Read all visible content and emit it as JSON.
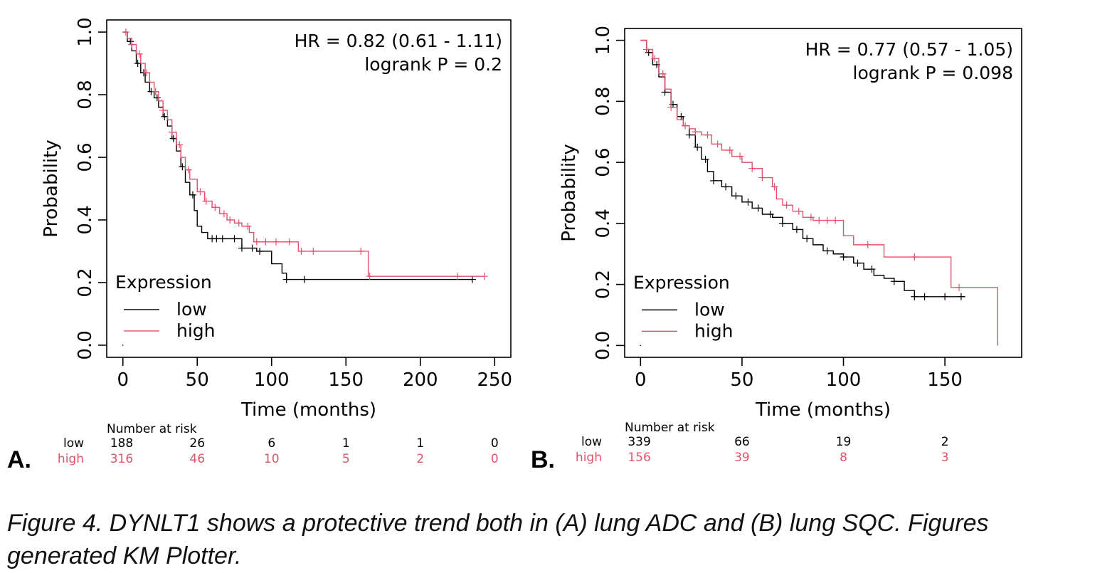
{
  "colors": {
    "low": "#000000",
    "high": "#df536b",
    "axis": "#000000"
  },
  "caption": "Figure 4. DYNLT1 shows a protective trend both in (A) lung ADC and (B) lung SQC. Figures generated KM Plotter.",
  "chart_data": [
    {
      "type": "line",
      "panel_label": "A.",
      "xlabel": "Time (months)",
      "ylabel": "Probability",
      "xlim": [
        0,
        250
      ],
      "ylim": [
        0,
        1
      ],
      "x_ticks": [
        0,
        50,
        100,
        150,
        200,
        250
      ],
      "y_ticks": [
        0.0,
        0.2,
        0.4,
        0.6,
        0.8,
        1.0
      ],
      "annotation": [
        "HR = 0.82 (0.61 - 1.11)",
        "logrank P = 0.2"
      ],
      "legend_title": "Expression",
      "legend_position": "bottom-left",
      "risk_title": "Number at risk",
      "risk_times": [
        0,
        50,
        100,
        150,
        200,
        250
      ],
      "series": [
        {
          "name": "low",
          "color": "#000000",
          "x": [
            0,
            3,
            6,
            9,
            12,
            15,
            18,
            21,
            24,
            27,
            30,
            33,
            36,
            39,
            42,
            45,
            48,
            50,
            53,
            57,
            60,
            65,
            70,
            80,
            90,
            100,
            107,
            110,
            150,
            200,
            235
          ],
          "y": [
            1.0,
            0.97,
            0.94,
            0.9,
            0.87,
            0.84,
            0.81,
            0.79,
            0.76,
            0.73,
            0.7,
            0.66,
            0.62,
            0.57,
            0.52,
            0.48,
            0.43,
            0.38,
            0.36,
            0.34,
            0.34,
            0.34,
            0.34,
            0.31,
            0.3,
            0.26,
            0.23,
            0.21,
            0.21,
            0.21,
            0.21
          ],
          "censor_x": [
            5,
            10,
            14,
            19,
            23,
            28,
            34,
            40,
            47,
            60,
            63,
            67,
            75,
            80,
            87,
            92,
            110,
            122,
            235
          ],
          "at_risk": [
            188,
            26,
            6,
            1,
            1,
            0
          ]
        },
        {
          "name": "high",
          "color": "#df536b",
          "x": [
            0,
            3,
            6,
            9,
            12,
            15,
            18,
            21,
            24,
            27,
            30,
            33,
            36,
            39,
            42,
            45,
            50,
            55,
            60,
            65,
            70,
            75,
            80,
            85,
            88,
            95,
            105,
            118,
            130,
            150,
            160,
            165,
            200,
            243
          ],
          "y": [
            1.0,
            0.98,
            0.96,
            0.93,
            0.9,
            0.87,
            0.84,
            0.81,
            0.78,
            0.75,
            0.72,
            0.68,
            0.64,
            0.6,
            0.56,
            0.53,
            0.49,
            0.46,
            0.44,
            0.42,
            0.4,
            0.39,
            0.38,
            0.36,
            0.33,
            0.33,
            0.33,
            0.3,
            0.3,
            0.3,
            0.3,
            0.22,
            0.22,
            0.22
          ],
          "censor_x": [
            2,
            6,
            11,
            16,
            22,
            27,
            33,
            38,
            44,
            52,
            56,
            62,
            68,
            72,
            78,
            84,
            90,
            96,
            103,
            112,
            120,
            128,
            160,
            166,
            225,
            243
          ],
          "at_risk": [
            316,
            46,
            10,
            5,
            2,
            0
          ]
        }
      ]
    },
    {
      "type": "line",
      "panel_label": "B.",
      "xlabel": "Time (months)",
      "ylabel": "Probability",
      "xlim": [
        0,
        180
      ],
      "ylim": [
        0,
        1
      ],
      "x_ticks": [
        0,
        50,
        100,
        150
      ],
      "y_ticks": [
        0.0,
        0.2,
        0.4,
        0.6,
        0.8,
        1.0
      ],
      "annotation": [
        "HR = 0.77 (0.57 - 1.05)",
        "logrank P = 0.098"
      ],
      "legend_title": "Expression",
      "legend_position": "bottom-left",
      "risk_title": "Number at risk",
      "risk_times": [
        0,
        50,
        100,
        150
      ],
      "series": [
        {
          "name": "low",
          "color": "#000000",
          "x": [
            0,
            3,
            6,
            9,
            12,
            15,
            18,
            21,
            24,
            27,
            30,
            33,
            36,
            40,
            45,
            50,
            55,
            60,
            65,
            70,
            75,
            80,
            85,
            90,
            95,
            100,
            105,
            110,
            115,
            120,
            125,
            130,
            135,
            150,
            160
          ],
          "y": [
            1.0,
            0.96,
            0.92,
            0.88,
            0.83,
            0.79,
            0.75,
            0.72,
            0.69,
            0.65,
            0.61,
            0.57,
            0.54,
            0.52,
            0.49,
            0.47,
            0.45,
            0.43,
            0.42,
            0.4,
            0.38,
            0.35,
            0.33,
            0.31,
            0.3,
            0.29,
            0.27,
            0.25,
            0.23,
            0.22,
            0.21,
            0.18,
            0.16,
            0.16,
            0.16
          ],
          "censor_x": [
            4,
            8,
            12,
            16,
            20,
            24,
            28,
            32,
            36,
            42,
            47,
            53,
            58,
            64,
            70,
            77,
            82,
            92,
            100,
            107,
            114,
            125,
            135,
            140,
            150,
            158
          ],
          "at_risk": [
            339,
            66,
            19,
            2
          ]
        },
        {
          "name": "high",
          "color": "#df536b",
          "x": [
            0,
            3,
            6,
            9,
            12,
            15,
            18,
            21,
            24,
            27,
            30,
            35,
            40,
            45,
            50,
            55,
            60,
            65,
            67,
            70,
            75,
            80,
            85,
            90,
            95,
            100,
            105,
            110,
            115,
            120,
            140,
            153,
            160,
            176,
            176
          ],
          "y": [
            1.0,
            0.97,
            0.94,
            0.89,
            0.84,
            0.78,
            0.74,
            0.72,
            0.71,
            0.7,
            0.69,
            0.66,
            0.64,
            0.62,
            0.6,
            0.58,
            0.55,
            0.52,
            0.48,
            0.46,
            0.44,
            0.42,
            0.41,
            0.41,
            0.41,
            0.36,
            0.33,
            0.33,
            0.33,
            0.29,
            0.29,
            0.19,
            0.19,
            0.19,
            0.0
          ],
          "censor_x": [
            3,
            7,
            11,
            15,
            22,
            27,
            33,
            38,
            44,
            49,
            55,
            60,
            66,
            72,
            78,
            84,
            88,
            92,
            96,
            112,
            135,
            157
          ],
          "at_risk": [
            156,
            39,
            8,
            3
          ]
        }
      ]
    }
  ]
}
